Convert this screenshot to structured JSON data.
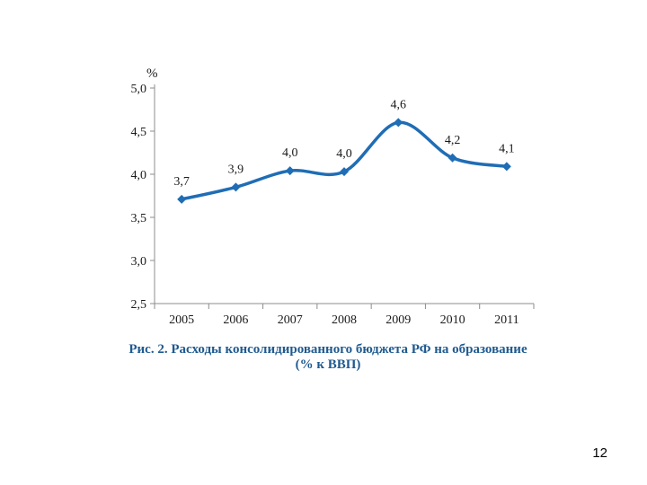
{
  "chart_data": {
    "type": "line",
    "categories": [
      "2005",
      "2006",
      "2007",
      "2008",
      "2009",
      "2010",
      "2011"
    ],
    "values": [
      3.7,
      3.9,
      4.0,
      4.0,
      4.6,
      4.2,
      4.1
    ],
    "plotted_values": [
      3.71,
      3.85,
      4.04,
      4.03,
      4.6,
      4.19,
      4.09
    ],
    "data_labels": [
      "3,7",
      "3,9",
      "4,0",
      "4,0",
      "4,6",
      "4,2",
      "4,1"
    ],
    "yticks": [
      5.0,
      4.5,
      4.0,
      3.5,
      3.0,
      2.5
    ],
    "ytick_labels": [
      "5,0",
      "4,5",
      "4,0",
      "3,5",
      "3,0",
      "2,5"
    ],
    "ylim": [
      2.5,
      5.0
    ],
    "ylabel": "%",
    "xlabel": "",
    "series_color": "#1f6db5",
    "title_prefix": "Рис. 2.",
    "title": "Расходы консолидированного бюджета РФ на образование",
    "title_line2": "(% к ВВП)"
  },
  "page": {
    "number": "12"
  }
}
